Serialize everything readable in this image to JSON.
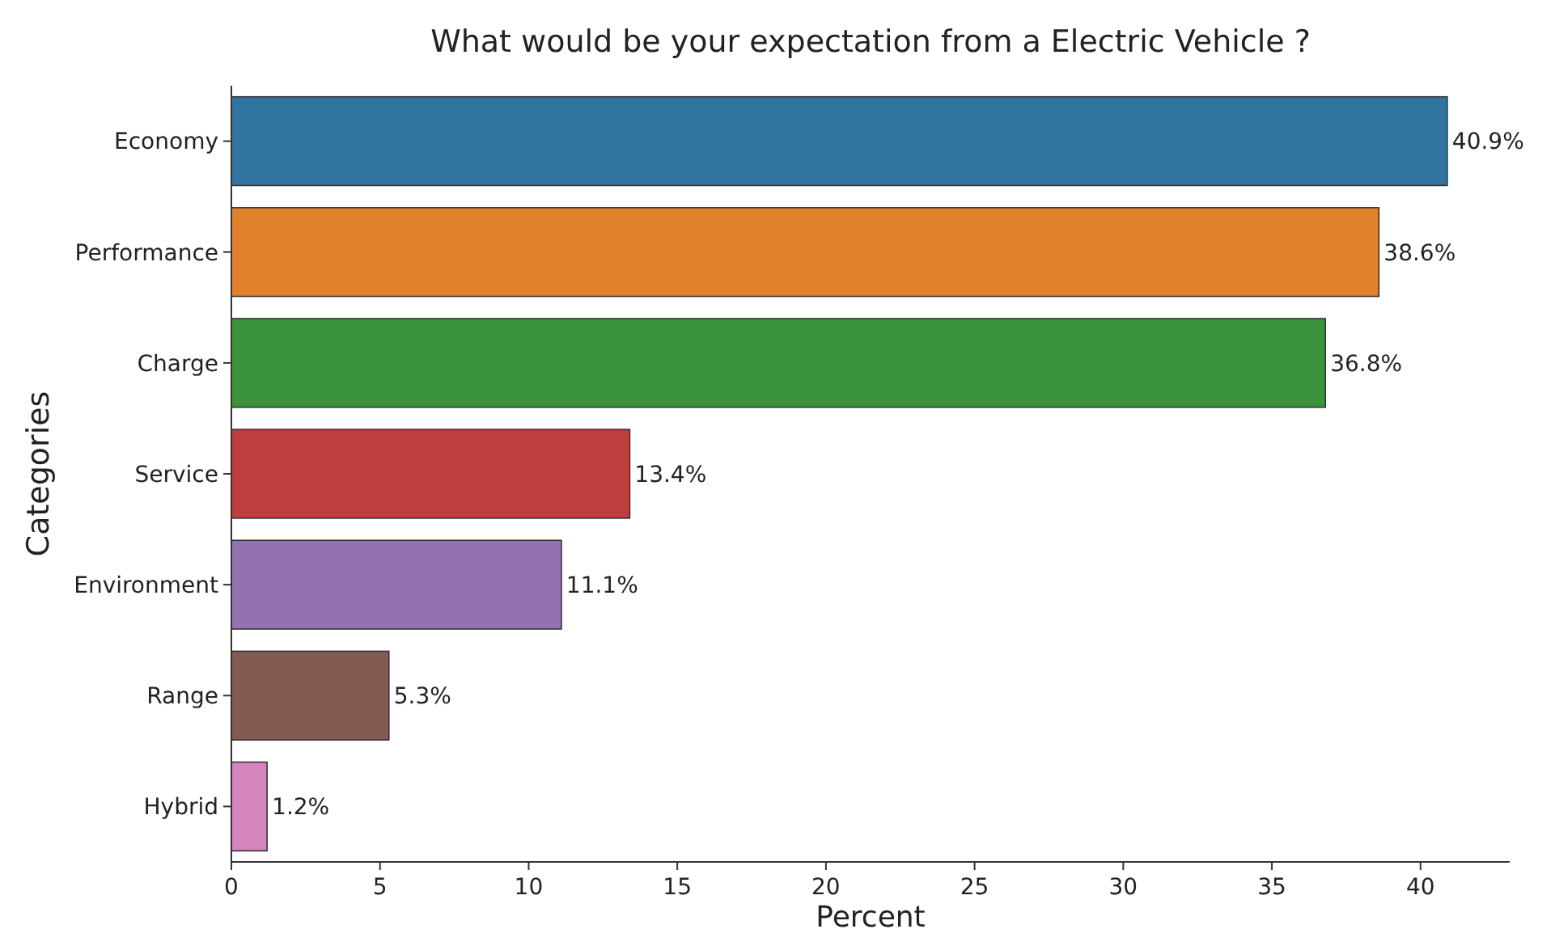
{
  "chart_data": {
    "type": "bar",
    "orientation": "horizontal",
    "title": "What would be your expectation from a Electric Vehicle ?",
    "xlabel": "Percent",
    "ylabel": "Categories",
    "categories": [
      "Economy",
      "Performance",
      "Charge",
      "Service",
      "Environment",
      "Range",
      "Hybrid"
    ],
    "values": [
      40.9,
      38.6,
      36.8,
      13.4,
      11.1,
      5.3,
      1.2
    ],
    "colors": [
      "#3274a1",
      "#e1812c",
      "#3a923a",
      "#c03d3e",
      "#9372b2",
      "#845b53",
      "#d684bd"
    ],
    "value_labels": [
      "40.9%",
      "38.6%",
      "36.8%",
      "13.4%",
      "11.1%",
      "5.3%",
      "1.2%"
    ],
    "xlim": [
      0,
      43
    ],
    "xticks": [
      0,
      5,
      10,
      15,
      20,
      25,
      30,
      35,
      40
    ],
    "grid": false
  }
}
